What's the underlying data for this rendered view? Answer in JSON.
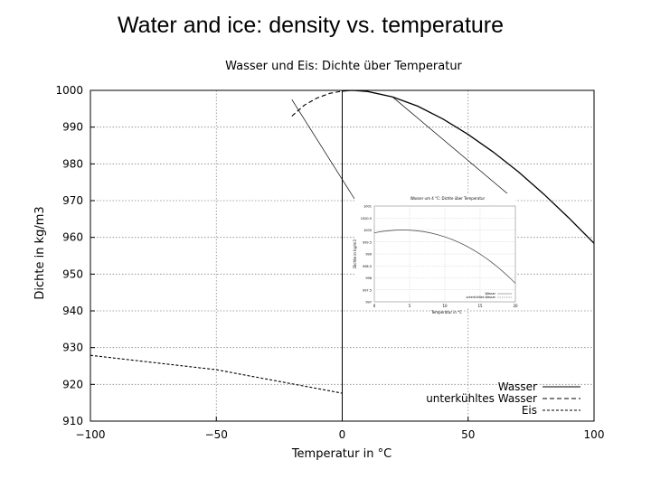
{
  "slide": {
    "title": "Water and ice: density vs. temperature"
  },
  "chart_data": {
    "type": "line",
    "title": "Wasser und Eis: Dichte über Temperatur",
    "xlabel": "Temperatur in °C",
    "ylabel": "Dichte in kg/m3",
    "xlim": [
      -100,
      100
    ],
    "ylim": [
      910,
      1000
    ],
    "xticks": [
      "−100",
      "−50",
      "0",
      "50",
      "100"
    ],
    "yticks": [
      "910",
      "920",
      "930",
      "940",
      "950",
      "960",
      "970",
      "980",
      "990",
      "1000"
    ],
    "legend_position": "bottom-right",
    "series": [
      {
        "name": "Wasser",
        "style": "solid",
        "x": [
          0,
          4,
          10,
          20,
          30,
          40,
          50,
          60,
          70,
          80,
          90,
          100
        ],
        "y": [
          999.8,
          1000.0,
          999.7,
          998.2,
          995.7,
          992.2,
          988.0,
          983.2,
          977.8,
          971.8,
          965.3,
          958.4
        ]
      },
      {
        "name": "unterkühltes Wasser",
        "style": "dashed",
        "x": [
          -20,
          -15,
          -10,
          -5,
          0
        ],
        "y": [
          993.0,
          996.0,
          997.9,
          999.2,
          999.8
        ]
      },
      {
        "name": "Eis",
        "style": "dotted",
        "x": [
          -100,
          -50,
          0
        ],
        "y": [
          927.9,
          924.0,
          917.6
        ]
      }
    ],
    "inset": {
      "title": "Wasser um 4 °C: Dichte über Temperatur",
      "xlabel": "Temperatur in °C",
      "ylabel": "Dichte in kg/m3",
      "xticks": [
        "0",
        "5",
        "10",
        "15",
        "20"
      ],
      "yticks": [
        "997",
        "997.5",
        "998",
        "998.5",
        "999",
        "999.5",
        "1000",
        "1000.5",
        "1001"
      ],
      "legend": [
        "Wasser",
        "unterkühltes Wasser"
      ]
    }
  }
}
